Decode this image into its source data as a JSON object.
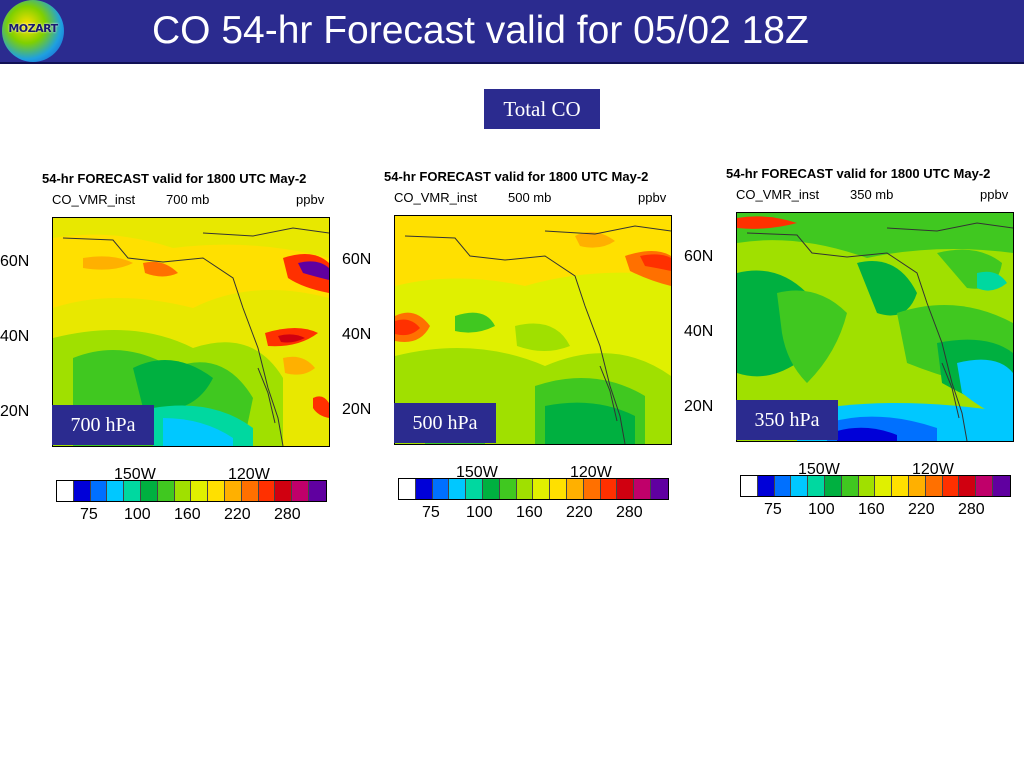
{
  "header": {
    "logo_text": "MOZART",
    "title": "CO 54-hr Forecast valid for 05/02 18Z"
  },
  "subtitle": "Total CO",
  "colorbar": {
    "colors": [
      "#ffffff",
      "#0000d8",
      "#0070ff",
      "#00c8ff",
      "#00d8a0",
      "#00b040",
      "#40c820",
      "#a0e000",
      "#e0f000",
      "#ffe000",
      "#ffb000",
      "#ff7000",
      "#ff3000",
      "#d00010",
      "#c0006a",
      "#6000a0"
    ],
    "tick_labels": [
      "75",
      "100",
      "160",
      "220",
      "280"
    ]
  },
  "panels": [
    {
      "title": "54-hr FORECAST valid for 1800 UTC May-2",
      "variable": "CO_VMR_inst",
      "level_mb": "700 mb",
      "units": "ppbv",
      "level_label": "700 hPa",
      "lat_labels": [
        "60N",
        "40N",
        "20N"
      ],
      "lon_labels": [
        "150W",
        "120W"
      ]
    },
    {
      "title": "54-hr FORECAST valid for 1800 UTC May-2",
      "variable": "CO_VMR_inst",
      "level_mb": "500 mb",
      "units": "ppbv",
      "level_label": "500 hPa",
      "lat_labels": [
        "60N",
        "40N",
        "20N"
      ],
      "lon_labels": [
        "150W",
        "120W"
      ]
    },
    {
      "title": "54-hr FORECAST valid for 1800 UTC May-2",
      "variable": "CO_VMR_inst",
      "level_mb": "350 mb",
      "units": "ppbv",
      "level_label": "350 hPa",
      "lat_labels": [
        "60N",
        "40N",
        "20N"
      ],
      "lon_labels": [
        "150W",
        "120W"
      ]
    }
  ]
}
